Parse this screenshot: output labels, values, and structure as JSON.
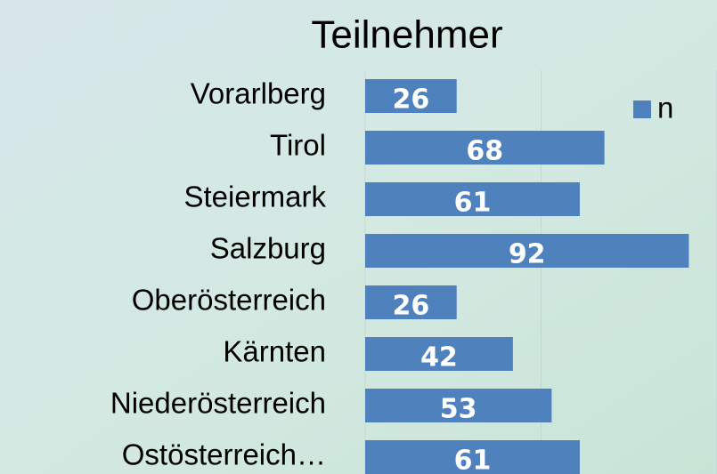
{
  "chart_data": {
    "type": "bar",
    "orientation": "horizontal",
    "title": "Teilnehmer",
    "categories": [
      "Vorarlberg",
      "Tirol",
      "Steiermark",
      "Salzburg",
      "Oberösterreich",
      "Kärnten",
      "Niederösterreich",
      "Ostösterreich…"
    ],
    "series": [
      {
        "name": "n",
        "color": "#4f81bd",
        "values": [
          26,
          68,
          61,
          92,
          26,
          42,
          53,
          61
        ]
      }
    ],
    "xlim": [
      0,
      100
    ],
    "xticks": [
      0,
      50,
      100
    ],
    "grid": true,
    "legend": "top-right"
  }
}
